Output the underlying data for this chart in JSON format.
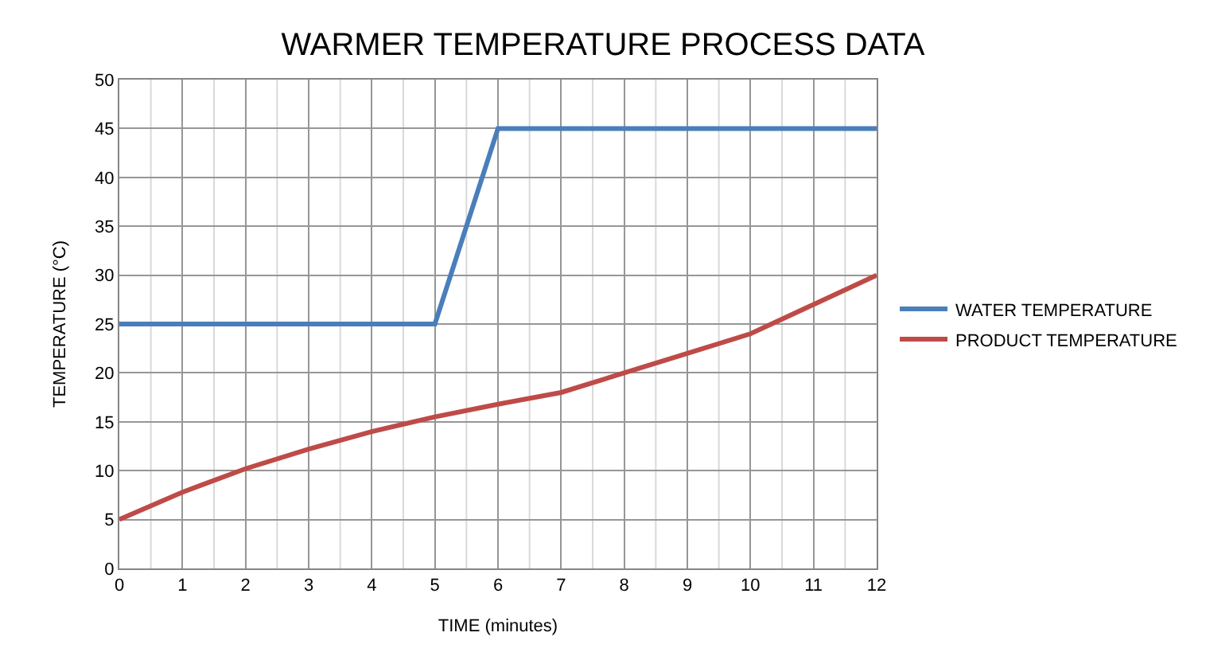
{
  "chart_data": {
    "type": "line",
    "title": "WARMER TEMPERATURE PROCESS DATA",
    "xlabel": "TIME (minutes)",
    "ylabel": "TEMPERATURE (°C)",
    "x": [
      0,
      1,
      2,
      3,
      4,
      5,
      6,
      7,
      8,
      9,
      10,
      11,
      12
    ],
    "series": [
      {
        "name": "WATER TEMPERATURE",
        "color": "#4a7ebb",
        "values": [
          25,
          25,
          25,
          25,
          25,
          25,
          45,
          45,
          45,
          45,
          45,
          45,
          45
        ]
      },
      {
        "name": "PRODUCT TEMPERATURE",
        "color": "#be4b48",
        "values": [
          5,
          7.8,
          10.2,
          12.2,
          14,
          15.5,
          16.8,
          18,
          20,
          22,
          24,
          27,
          30
        ]
      }
    ],
    "xlim": [
      0,
      12
    ],
    "xticks": [
      0,
      1,
      2,
      3,
      4,
      5,
      6,
      7,
      8,
      9,
      10,
      11,
      12
    ],
    "ylim": [
      0,
      50
    ],
    "yticks": [
      0,
      5,
      10,
      15,
      20,
      25,
      30,
      35,
      40,
      45,
      50
    ],
    "grid": true,
    "legend": "right",
    "marker": "none",
    "line_style": "solid"
  }
}
